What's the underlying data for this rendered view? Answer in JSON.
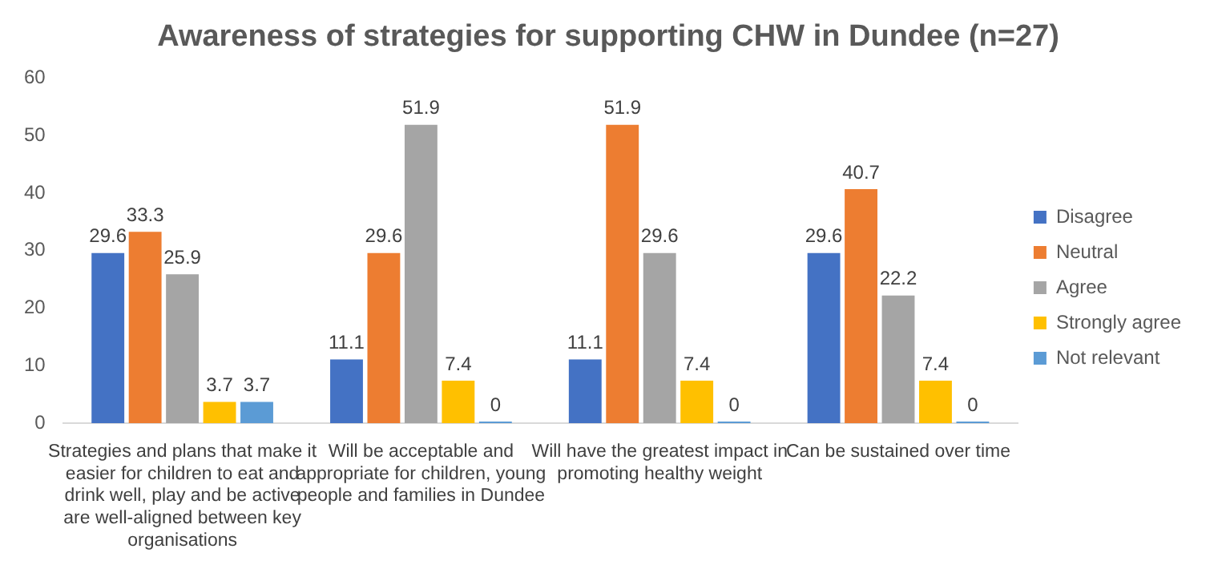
{
  "chart_data": {
    "type": "bar",
    "title": "Awareness of strategies for supporting CHW in Dundee (n=27)",
    "categories": [
      "Strategies and plans that make it easier for children to eat and drink well, play and be active are well-aligned between key organisations",
      "Will be acceptable and appropriate for children, young people and families in Dundee",
      "Will have the greatest impact in promoting healthy weight",
      "Can be sustained over time"
    ],
    "series": [
      {
        "name": "Disagree",
        "color": "#4472c4",
        "values": [
          29.6,
          11.1,
          11.1,
          29.6
        ]
      },
      {
        "name": "Neutral",
        "color": "#ed7d31",
        "values": [
          33.3,
          29.6,
          51.9,
          40.7
        ]
      },
      {
        "name": "Agree",
        "color": "#a5a5a5",
        "values": [
          25.9,
          51.9,
          29.6,
          22.2
        ]
      },
      {
        "name": "Strongly agree",
        "color": "#ffc000",
        "values": [
          3.7,
          7.4,
          7.4,
          7.4
        ]
      },
      {
        "name": "Not relevant",
        "color": "#5b9bd5",
        "values": [
          3.7,
          0,
          0,
          0
        ]
      }
    ],
    "ylim": [
      0,
      60
    ],
    "yticks": [
      0,
      10,
      20,
      30,
      40,
      50,
      60
    ],
    "grid": false,
    "legend": "right",
    "data_labels": true
  }
}
